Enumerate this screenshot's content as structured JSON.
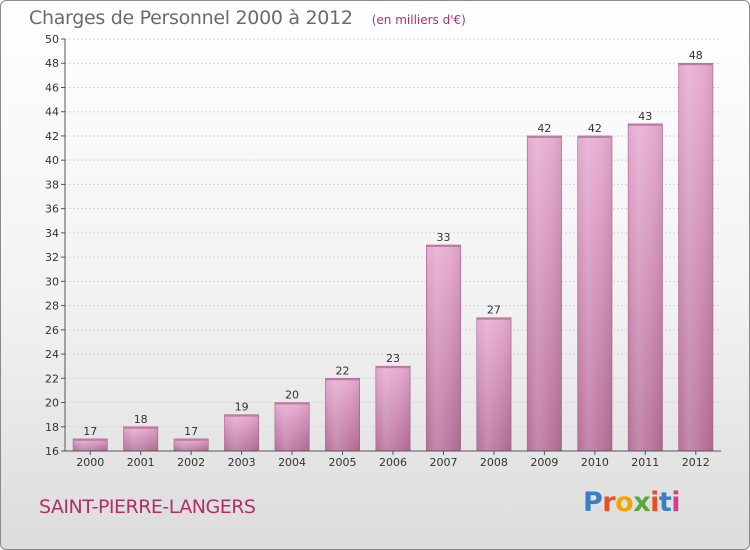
{
  "header": {
    "title": "Charges de Personnel 2000 à 2012",
    "subtitle": "(en milliers d'€)"
  },
  "footer": {
    "place": "SAINT-PIERRE-LANGERS",
    "logo": "Proxiti",
    "logo_colors": [
      "#3a7fc4",
      "#e8511f",
      "#f0a800",
      "#58a83a",
      "#e8511f",
      "#3a7fc4",
      "#d83a8a"
    ]
  },
  "chart_data": {
    "type": "bar",
    "categories": [
      "2000",
      "2001",
      "2002",
      "2003",
      "2004",
      "2005",
      "2006",
      "2007",
      "2008",
      "2009",
      "2010",
      "2011",
      "2012"
    ],
    "values": [
      17,
      18,
      17,
      19,
      20,
      22,
      23,
      33,
      27,
      42,
      42,
      43,
      48
    ],
    "title": "Charges de Personnel 2000 à 2012",
    "subtitle": "(en milliers d'€)",
    "xlabel": "",
    "ylabel": "",
    "ylim": [
      16,
      50
    ],
    "yticks": [
      16,
      18,
      20,
      22,
      24,
      26,
      28,
      30,
      32,
      34,
      36,
      38,
      40,
      42,
      44,
      46,
      48,
      50
    ],
    "grid": true,
    "bar_color": "#d998c0"
  }
}
